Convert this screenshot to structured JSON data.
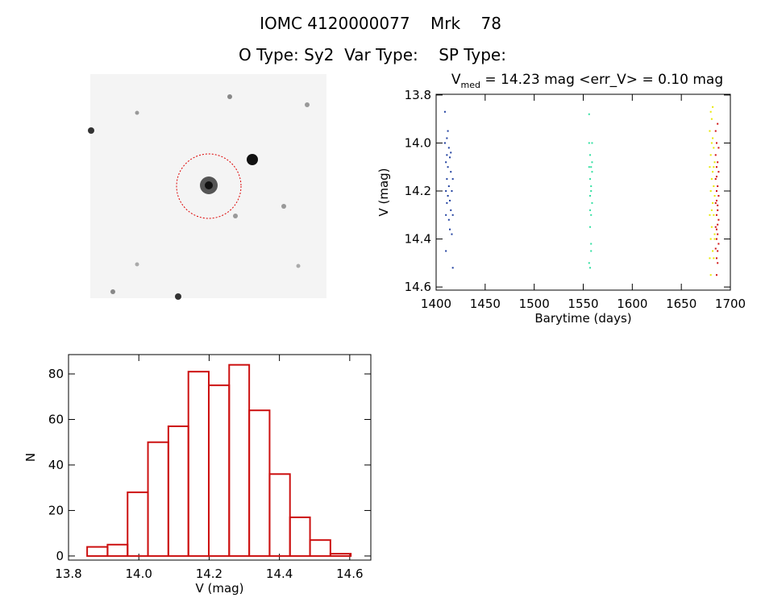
{
  "header": {
    "title": "IOMC 4120000077    Mrk    78",
    "subtitle": "O Type: Sy2  Var Type:    SP Type:"
  },
  "chart_data": [
    {
      "type": "scatter",
      "title_parts": [
        "V",
        "med",
        " = 14.23 mag <err_V> = 0.10 mag"
      ],
      "x_label": "Barytime (days)",
      "y_label": "V (mag)",
      "xlim": [
        1400,
        1700
      ],
      "xticks": [
        1400,
        1450,
        1500,
        1550,
        1600,
        1650,
        1700
      ],
      "ylim": [
        14.613,
        13.797
      ],
      "yticks": [
        {
          "value": 13.8,
          "label": "13.8"
        },
        {
          "value": 14.0,
          "label": "14.0"
        },
        {
          "value": 14.2,
          "label": "14.2"
        },
        {
          "value": 14.4,
          "label": "14.4"
        },
        {
          "value": 14.6,
          "label": "14.6"
        }
      ],
      "series": [
        {
          "color": "#1f3f9f",
          "x": [
            1409,
            1409,
            1410,
            1410,
            1410,
            1411,
            1411,
            1411,
            1412,
            1412,
            1412,
            1413,
            1413,
            1413,
            1414,
            1414,
            1414,
            1415,
            1415,
            1415,
            1416,
            1416,
            1417,
            1417,
            1417,
            1410,
            1411
          ],
          "values": [
            13.87,
            14.0,
            14.08,
            14.2,
            14.3,
            14.05,
            14.15,
            14.25,
            13.95,
            14.1,
            14.22,
            14.02,
            14.18,
            14.32,
            14.06,
            14.24,
            14.36,
            14.12,
            14.28,
            14.04,
            14.2,
            14.38,
            14.15,
            14.3,
            14.52,
            14.45,
            13.98
          ]
        },
        {
          "color": "#30dfa0",
          "x": [
            1556,
            1556,
            1556,
            1557,
            1557,
            1557,
            1557,
            1558,
            1558,
            1558,
            1558,
            1559,
            1559,
            1559,
            1556,
            1557,
            1558,
            1559,
            1557,
            1558
          ],
          "values": [
            13.88,
            14.0,
            14.1,
            14.05,
            14.15,
            14.22,
            14.35,
            14.1,
            14.2,
            14.3,
            14.42,
            14.0,
            14.12,
            14.25,
            14.5,
            14.52,
            14.18,
            14.08,
            14.28,
            14.45
          ]
        },
        {
          "color": "#e8e800",
          "x": [
            1679,
            1679,
            1679,
            1680,
            1680,
            1680,
            1680,
            1681,
            1681,
            1681,
            1681,
            1682,
            1682,
            1682,
            1682,
            1683,
            1683,
            1683,
            1683,
            1684,
            1684,
            1684,
            1680,
            1681,
            1682,
            1683,
            1679,
            1684
          ],
          "values": [
            13.95,
            14.1,
            14.3,
            13.87,
            14.05,
            14.2,
            14.4,
            13.9,
            14.0,
            14.15,
            14.35,
            13.98,
            14.12,
            14.25,
            14.45,
            14.02,
            14.18,
            14.3,
            14.48,
            14.08,
            14.22,
            14.38,
            14.55,
            14.28,
            13.85,
            14.1,
            14.48,
            14.4
          ]
        },
        {
          "color": "#d01010",
          "x": [
            1685,
            1685,
            1685,
            1685,
            1685,
            1686,
            1686,
            1686,
            1686,
            1686,
            1686,
            1687,
            1687,
            1687,
            1687,
            1687,
            1687,
            1688,
            1688,
            1688,
            1688,
            1686,
            1687,
            1686,
            1687,
            1685,
            1688,
            1686,
            1687,
            1686
          ],
          "values": [
            13.95,
            14.05,
            14.15,
            14.25,
            14.35,
            14.0,
            14.1,
            14.2,
            14.3,
            14.4,
            14.48,
            13.92,
            14.08,
            14.18,
            14.28,
            14.38,
            14.45,
            14.12,
            14.22,
            14.32,
            14.42,
            14.55,
            14.5,
            14.24,
            14.34,
            14.44,
            14.02,
            14.14,
            14.26,
            14.36
          ]
        }
      ]
    },
    {
      "type": "histogram",
      "color": "#cc1111",
      "x_label": "V (mag)",
      "y_label": "N",
      "bins": [
        13.853,
        13.911,
        13.968,
        14.026,
        14.084,
        14.141,
        14.199,
        14.257,
        14.314,
        14.372,
        14.43,
        14.487,
        14.545,
        14.603
      ],
      "values": [
        4,
        5,
        28,
        50,
        57,
        81,
        75,
        84,
        64,
        36,
        17,
        7,
        1
      ],
      "xlim": [
        13.8,
        14.66
      ],
      "xticks": [
        {
          "value": 13.8,
          "label": "13.8"
        },
        {
          "value": 14.0,
          "label": "14.0"
        },
        {
          "value": 14.2,
          "label": "14.2"
        },
        {
          "value": 14.4,
          "label": "14.4"
        },
        {
          "value": 14.6,
          "label": "14.6"
        }
      ],
      "ylim": [
        -1.8,
        88.5
      ],
      "yticks": [
        0,
        20,
        40,
        60,
        80
      ]
    }
  ]
}
